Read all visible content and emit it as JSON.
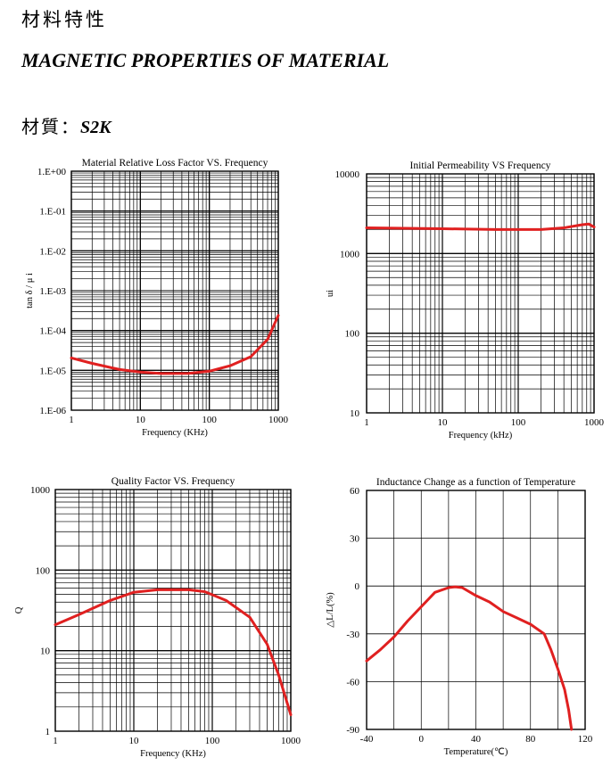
{
  "header": {
    "title_cn": "材料特性",
    "title_en": "MAGNETIC PROPERTIES OF MATERIAL",
    "material_label": "材質：",
    "material_name": "S2K"
  },
  "colors": {
    "curve": "#e02020",
    "grid": "#000000"
  },
  "chart_data": [
    {
      "type": "line",
      "title": "Material Relative Loss Factor VS. Frequency",
      "xlabel": "Frequency (KHz)",
      "ylabel": "tan δ / μ i",
      "xscale": "log",
      "yscale": "log",
      "xlim": [
        1,
        1000
      ],
      "ylim": [
        1e-06,
        1
      ],
      "xticks": [
        1,
        10,
        100,
        1000
      ],
      "xtick_labels": [
        "1",
        "10",
        "100",
        "1000"
      ],
      "yticks": [
        1e-06,
        1e-05,
        0.0001,
        0.001,
        0.01,
        0.1,
        1
      ],
      "ytick_labels": [
        "1.E-06",
        "1.E-05",
        "1.E-04",
        "1.E-03",
        "1.E-02",
        "1.E-01",
        "1.E+00"
      ],
      "grid": true,
      "series": [
        {
          "x": [
            1,
            2,
            5,
            10,
            20,
            50,
            100,
            200,
            400,
            700,
            1000
          ],
          "y": [
            2.05e-05,
            1.5e-05,
            1.05e-05,
            9.1e-06,
            8.3e-06,
            8.4e-06,
            9.5e-06,
            1.3e-05,
            2.2e-05,
            6e-05,
            0.00024
          ]
        }
      ]
    },
    {
      "type": "line",
      "title": "Initial Permeability VS Frequency",
      "xlabel": "Frequency (kHz)",
      "ylabel": "ui",
      "xscale": "log",
      "yscale": "log",
      "xlim": [
        1,
        1000
      ],
      "ylim": [
        10,
        10000
      ],
      "xticks": [
        1,
        10,
        100,
        1000
      ],
      "xtick_labels": [
        "1",
        "10",
        "100",
        "1000"
      ],
      "yticks": [
        10,
        100,
        1000,
        10000
      ],
      "ytick_labels": [
        "10",
        "100",
        "1000",
        "10000"
      ],
      "grid": true,
      "series": [
        {
          "x": [
            1,
            10,
            50,
            100,
            200,
            400,
            700,
            850,
            1000
          ],
          "y": [
            2100,
            2050,
            2000,
            2000,
            2000,
            2100,
            2300,
            2350,
            2150
          ]
        }
      ]
    },
    {
      "type": "line",
      "title": "Quality Factor  VS. Frequency",
      "xlabel": "Frequency (KHz)",
      "ylabel": "Q",
      "xscale": "log",
      "yscale": "log",
      "xlim": [
        1,
        1000
      ],
      "ylim": [
        1,
        1000
      ],
      "xticks": [
        1,
        10,
        100,
        1000
      ],
      "xtick_labels": [
        "1",
        "10",
        "100",
        "1000"
      ],
      "yticks": [
        1,
        10,
        100,
        1000
      ],
      "ytick_labels": [
        "1",
        "10",
        "100",
        "1000"
      ],
      "grid": true,
      "series": [
        {
          "x": [
            1,
            2,
            5,
            10,
            20,
            50,
            80,
            150,
            300,
            500,
            700,
            1000
          ],
          "y": [
            21,
            28,
            42,
            53,
            57,
            57,
            54,
            42,
            26,
            12,
            5,
            1.6
          ]
        }
      ]
    },
    {
      "type": "line",
      "title": "Inductance Change as a function of Temperature",
      "xlabel": "Temperature(℃)",
      "ylabel": "△L/L(%)",
      "xscale": "linear",
      "yscale": "linear",
      "xlim": [
        -40,
        120
      ],
      "ylim": [
        -90,
        60
      ],
      "xticks": [
        -40,
        0,
        40,
        80,
        120
      ],
      "xtick_labels": [
        "-40",
        "0",
        "40",
        "80",
        "120"
      ],
      "yticks": [
        -90,
        -60,
        -30,
        0,
        30,
        60
      ],
      "ytick_labels": [
        "-90",
        "-60",
        "-30",
        "0",
        "30",
        "60"
      ],
      "grid": true,
      "series": [
        {
          "x": [
            -40,
            -30,
            -20,
            -10,
            0,
            10,
            20,
            25,
            30,
            40,
            50,
            60,
            70,
            80,
            90,
            95,
            100,
            105,
            108,
            110
          ],
          "y": [
            -47,
            -40,
            -32,
            -22,
            -13,
            -4,
            -1,
            -0.5,
            -1,
            -6,
            -10,
            -16,
            -20,
            -24,
            -30,
            -40,
            -52,
            -65,
            -78,
            -90
          ]
        }
      ]
    }
  ]
}
